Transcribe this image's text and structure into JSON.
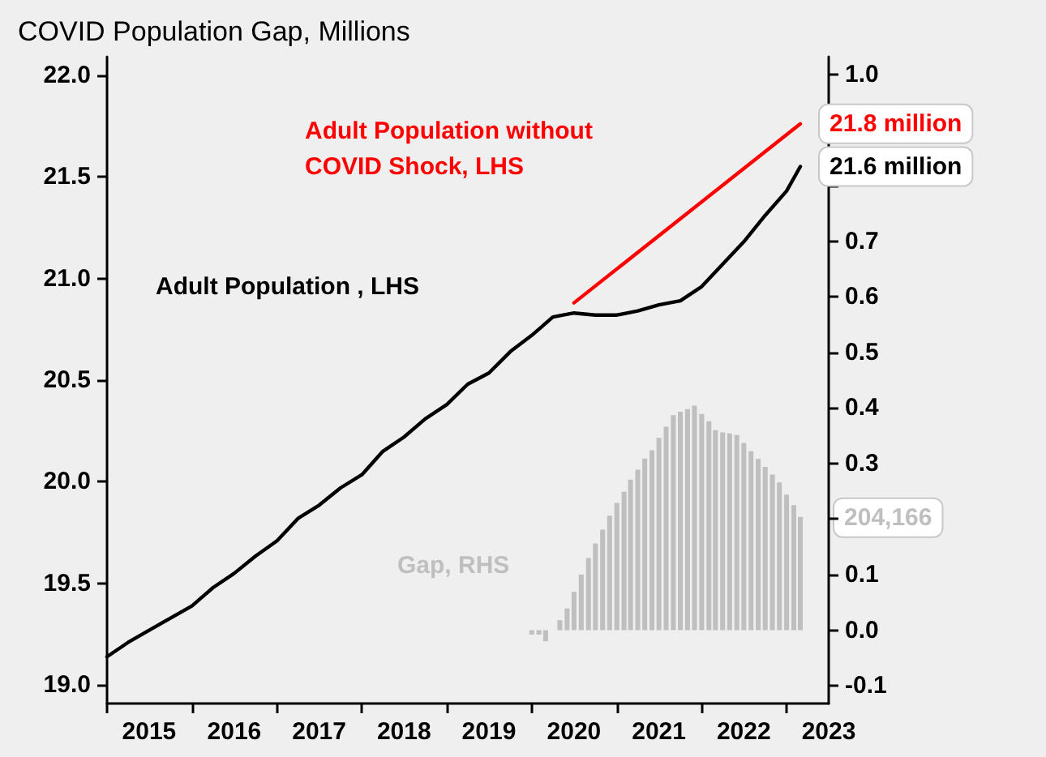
{
  "chart_data": {
    "type": "line",
    "title": "COVID Population Gap, Millions",
    "series": [
      {
        "name": "Adult Population without COVID Shock, LHS",
        "color": "#ff0000",
        "x": [
          "2020-07",
          "2023-03"
        ],
        "values": [
          20.88,
          21.76
        ],
        "value_labels": [
          null,
          "21.8 million"
        ]
      },
      {
        "name": "Adult Population , LHS",
        "color": "#000000",
        "x": [
          "2015-01",
          "2015-04",
          "2015-07",
          "2015-10",
          "2016-01",
          "2016-04",
          "2016-07",
          "2016-10",
          "2017-01",
          "2017-04",
          "2017-07",
          "2017-10",
          "2018-01",
          "2018-04",
          "2018-07",
          "2018-10",
          "2019-01",
          "2019-04",
          "2019-07",
          "2019-10",
          "2020-01",
          "2020-04",
          "2020-07",
          "2020-10",
          "2021-01",
          "2021-04",
          "2021-07",
          "2021-10",
          "2022-01",
          "2022-04",
          "2022-07",
          "2022-10",
          "2023-01",
          "2023-03"
        ],
        "values": [
          19.14,
          19.21,
          19.27,
          19.33,
          19.39,
          19.48,
          19.55,
          19.635,
          19.71,
          19.82,
          19.885,
          19.97,
          20.035,
          20.15,
          20.22,
          20.31,
          20.38,
          20.48,
          20.535,
          20.64,
          20.72,
          20.81,
          20.83,
          20.82,
          20.82,
          20.84,
          20.87,
          20.89,
          20.96,
          21.07,
          21.18,
          21.31,
          21.43,
          21.55
        ],
        "value_labels": [
          null,
          null,
          null,
          null,
          null,
          null,
          null,
          null,
          null,
          null,
          null,
          null,
          null,
          null,
          null,
          null,
          null,
          null,
          null,
          null,
          null,
          null,
          null,
          null,
          null,
          null,
          null,
          null,
          null,
          null,
          null,
          null,
          null,
          "21.6 million"
        ]
      },
      {
        "name": "Gap, RHS",
        "type": "bar",
        "axis": "y2",
        "color": "#bfbfbf",
        "x": [
          "2020-01",
          "2020-02",
          "2020-03",
          "2020-04",
          "2020-05",
          "2020-06",
          "2020-07",
          "2020-08",
          "2020-09",
          "2020-10",
          "2020-11",
          "2020-12",
          "2021-01",
          "2021-02",
          "2021-03",
          "2021-04",
          "2021-05",
          "2021-06",
          "2021-07",
          "2021-08",
          "2021-09",
          "2021-10",
          "2021-11",
          "2021-12",
          "2022-01",
          "2022-02",
          "2022-03",
          "2022-04",
          "2022-05",
          "2022-06",
          "2022-07",
          "2022-08",
          "2022-09",
          "2022-10",
          "2022-11",
          "2022-12",
          "2023-01",
          "2023-02",
          "2023-03"
        ],
        "values": [
          -0.008,
          -0.008,
          -0.02,
          0,
          0.018,
          0.039,
          0.069,
          0.1,
          0.13,
          0.156,
          0.181,
          0.206,
          0.229,
          0.249,
          0.271,
          0.289,
          0.309,
          0.324,
          0.346,
          0.366,
          0.387,
          0.393,
          0.398,
          0.404,
          0.389,
          0.376,
          0.36,
          0.356,
          0.354,
          0.351,
          0.337,
          0.322,
          0.308,
          0.294,
          0.28,
          0.266,
          0.244,
          0.225,
          0.204
        ]
      }
    ],
    "annotations": [
      "204,166"
    ],
    "xlim": [
      "2015-01-01",
      "2023-07-01"
    ],
    "xticks": [
      {
        "value": "2015-01-01",
        "label": null
      },
      {
        "value": "2016-01-01",
        "label": null
      },
      {
        "value": "2017-01-01",
        "label": null
      },
      {
        "value": "2018-01-01",
        "label": null
      },
      {
        "value": "2019-01-01",
        "label": null
      },
      {
        "value": "2020-01-01",
        "label": null
      },
      {
        "value": "2021-01-01",
        "label": null
      },
      {
        "value": "2022-01-01",
        "label": null
      },
      {
        "value": "2023-01-01",
        "label": null
      },
      {
        "value": "2015-07-01",
        "label": "2015"
      },
      {
        "value": "2016-07-01",
        "label": "2016"
      },
      {
        "value": "2017-07-01",
        "label": "2017"
      },
      {
        "value": "2018-07-01",
        "label": "2018"
      },
      {
        "value": "2019-07-01",
        "label": "2019"
      },
      {
        "value": "2020-07-01",
        "label": "2020"
      },
      {
        "value": "2021-07-01",
        "label": "2021"
      },
      {
        "value": "2022-07-01",
        "label": "2022"
      },
      {
        "value": "2023-07-01",
        "label": "2023"
      }
    ],
    "ylim": [
      18.91,
      22.09
    ],
    "yticks": [
      {
        "value": 19,
        "label": "19.0"
      },
      {
        "value": 19.5,
        "label": "19.5"
      },
      {
        "value": 20,
        "label": "20.0"
      },
      {
        "value": 20.5,
        "label": "20.5"
      },
      {
        "value": 21,
        "label": "21.0"
      },
      {
        "value": 21.5,
        "label": "21.5"
      },
      {
        "value": 22,
        "label": "22.0"
      }
    ],
    "y2lim": [
      -0.132,
      1.032
    ],
    "y2ticks": [
      {
        "value": -0.1,
        "label": "-0.1"
      },
      {
        "value": 0,
        "label": "0.0"
      },
      {
        "value": 0.1,
        "label": "0.1"
      },
      {
        "value": 0.2,
        "label": null
      },
      {
        "value": 0.3,
        "label": "0.3"
      },
      {
        "value": 0.4,
        "label": "0.4"
      },
      {
        "value": 0.5,
        "label": "0.5"
      },
      {
        "value": 0.6,
        "label": "0.6"
      },
      {
        "value": 0.7,
        "label": "0.7"
      },
      {
        "value": 0.8,
        "label": null
      },
      {
        "value": 0.9,
        "label": null
      },
      {
        "value": 1,
        "label": "1.0"
      }
    ],
    "legend": false,
    "grid": false,
    "marker": "none"
  }
}
